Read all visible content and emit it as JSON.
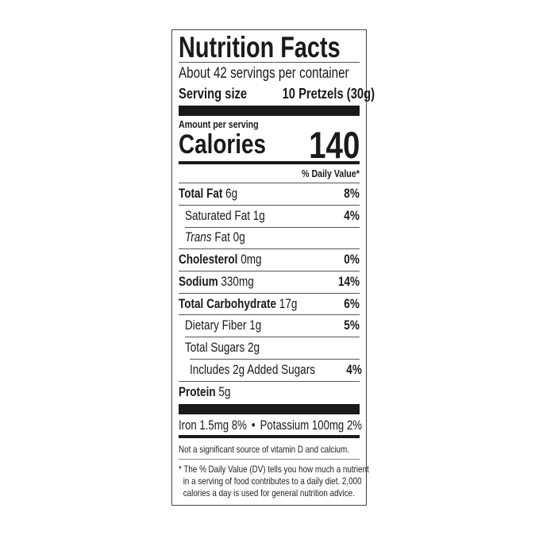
{
  "title": "Nutrition Facts",
  "servings_per_container": "About 42 servings per container",
  "serving_size": {
    "label": "Serving size",
    "value": "10 Pretzels (30g)"
  },
  "amount_per_serving": "Amount per serving",
  "calories": {
    "label": "Calories",
    "value": "140"
  },
  "daily_value_header": "% Daily Value*",
  "nutrients": [
    {
      "name": "Total Fat",
      "amount": "6g",
      "dv": "8%"
    },
    {
      "name": "Saturated Fat",
      "amount": "1g",
      "dv": "4%"
    },
    {
      "name": "Trans",
      "name_suffix": "Fat",
      "amount": "0g",
      "dv": ""
    },
    {
      "name": "Cholesterol",
      "amount": "0mg",
      "dv": "0%"
    },
    {
      "name": "Sodium",
      "amount": "330mg",
      "dv": "14%"
    },
    {
      "name": "Total Carbohydrate",
      "amount": "17g",
      "dv": "6%"
    },
    {
      "name": "Dietary Fiber",
      "amount": "1g",
      "dv": "5%"
    },
    {
      "name": "Total Sugars",
      "amount": "2g",
      "dv": ""
    },
    {
      "name": "Includes 2g Added Sugars",
      "amount": "",
      "dv": "4%"
    },
    {
      "name": "Protein",
      "amount": "5g",
      "dv": ""
    }
  ],
  "minerals": {
    "iron": "Iron 1.5mg 8%",
    "bullet": "•",
    "potassium": "Potassium 100mg 2%"
  },
  "not_significant": "Not a significant source of vitamin D and calcium.",
  "footnote": [
    "* The % Daily Value (DV) tells you how much a nutrient",
    "in a serving of food contributes to a daily diet. 2,000",
    "calories a day is used for general nutrition advice."
  ]
}
